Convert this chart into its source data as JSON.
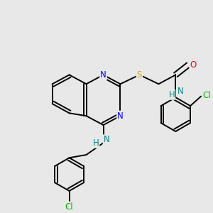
{
  "background_color": "#e8e8e8",
  "N_color": "#0000ff",
  "S_color": "#ccaa00",
  "O_color": "#ff0000",
  "Cl_color": "#00bb00",
  "NH_color": "#008888",
  "C_color": "#000000",
  "figsize": [
    3.0,
    3.0
  ],
  "dpi": 100,
  "xlim": [
    0,
    10
  ],
  "ylim": [
    0,
    10
  ]
}
